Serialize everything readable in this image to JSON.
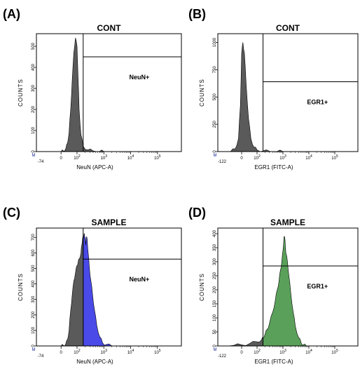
{
  "chart_data": [
    {
      "type": "histogram",
      "panel_label": "(A)",
      "title": "CONT",
      "xlabel": "NeuN (APC-A)",
      "ylabel": "COUNTS",
      "x_scale": "biexponential",
      "y_ticks": [
        0,
        100,
        200,
        300,
        400,
        500
      ],
      "ylim": [
        0,
        560
      ],
      "x_min_label": "-74",
      "gate": {
        "label": "NeuN+",
        "threshold": 170,
        "level": 450
      },
      "series": [
        {
          "color": "#5a5a5a",
          "x": [
            -74,
            0,
            15,
            30,
            40,
            50,
            60,
            70,
            80,
            90,
            100,
            110,
            120,
            140,
            170,
            250,
            400,
            700,
            1000
          ],
          "y": [
            0,
            0,
            3,
            15,
            40,
            90,
            200,
            340,
            470,
            540,
            500,
            350,
            200,
            80,
            25,
            8,
            3,
            1,
            0
          ]
        }
      ]
    },
    {
      "type": "histogram",
      "panel_label": "(B)",
      "title": "CONT",
      "xlabel": "EGR1 (FITC-A)",
      "ylabel": "COUNTS",
      "x_scale": "biexponential",
      "y_ticks": [
        0,
        250,
        500,
        750,
        1000
      ],
      "ylim": [
        0,
        1080
      ],
      "x_min_label": "-122",
      "gate": {
        "label": "EGR1+",
        "threshold": 170,
        "level": 640
      },
      "series": [
        {
          "color": "#5a5a5a",
          "x": [
            -122,
            -70,
            -40,
            -20,
            -8,
            0,
            8,
            18,
            30,
            45,
            60,
            80,
            100,
            170,
            300,
            600,
            1000
          ],
          "y": [
            0,
            0,
            25,
            120,
            420,
            900,
            1000,
            900,
            600,
            300,
            120,
            40,
            15,
            5,
            3,
            2,
            0
          ]
        }
      ]
    },
    {
      "type": "histogram",
      "panel_label": "(C)",
      "title": "SAMPLE",
      "xlabel": "NeuN (APC-A)",
      "ylabel": "COUNTS",
      "x_scale": "biexponential",
      "y_ticks": [
        0,
        100,
        200,
        300,
        400,
        500,
        600,
        700
      ],
      "ylim": [
        0,
        760
      ],
      "x_min_label": "-74",
      "gate": {
        "label": "NeuN+",
        "threshold": 170,
        "level": 560
      },
      "series": [
        {
          "color": "#5a5a5a",
          "x": [
            -74,
            0,
            15,
            30,
            40,
            50,
            60,
            70,
            80,
            90,
            100,
            110,
            120,
            140,
            150,
            160,
            170
          ],
          "y": [
            0,
            0,
            3,
            15,
            40,
            100,
            230,
            330,
            420,
            470,
            520,
            540,
            560,
            600,
            650,
            690,
            700
          ]
        },
        {
          "color": "#4a4ae8",
          "x": [
            170,
            180,
            190,
            200,
            210,
            220,
            240,
            260,
            290,
            330,
            380,
            450,
            550,
            700,
            900,
            1200,
            2000
          ],
          "y": [
            700,
            710,
            720,
            700,
            650,
            700,
            690,
            600,
            500,
            420,
            330,
            230,
            130,
            60,
            20,
            8,
            0
          ]
        }
      ]
    },
    {
      "type": "histogram",
      "panel_label": "(D)",
      "title": "SAMPLE",
      "xlabel": "EGR1 (FITC-A)",
      "ylabel": "COUNTS",
      "x_scale": "biexponential",
      "y_ticks": [
        0,
        50,
        100,
        150,
        200,
        250,
        300,
        350,
        400
      ],
      "ylim": [
        0,
        420
      ],
      "x_min_label": "-122",
      "gate": {
        "label": "EGR1+",
        "threshold": 170,
        "level": 285
      },
      "series": [
        {
          "color": "#5a5a5a",
          "x": [
            -122,
            -50,
            0,
            50,
            100,
            150,
            170
          ],
          "y": [
            0,
            2,
            4,
            8,
            15,
            22,
            28
          ]
        },
        {
          "color": "#5aa05a",
          "x": [
            170,
            200,
            250,
            300,
            400,
            500,
            600,
            700,
            800,
            900,
            1000,
            1100,
            1200,
            1300,
            1500,
            1700,
            2000,
            2500,
            3000,
            4000,
            5000,
            6000,
            8000
          ],
          "y": [
            30,
            40,
            60,
            80,
            120,
            160,
            200,
            230,
            270,
            300,
            340,
            390,
            380,
            330,
            300,
            250,
            190,
            120,
            70,
            30,
            12,
            4,
            0
          ]
        }
      ]
    }
  ]
}
